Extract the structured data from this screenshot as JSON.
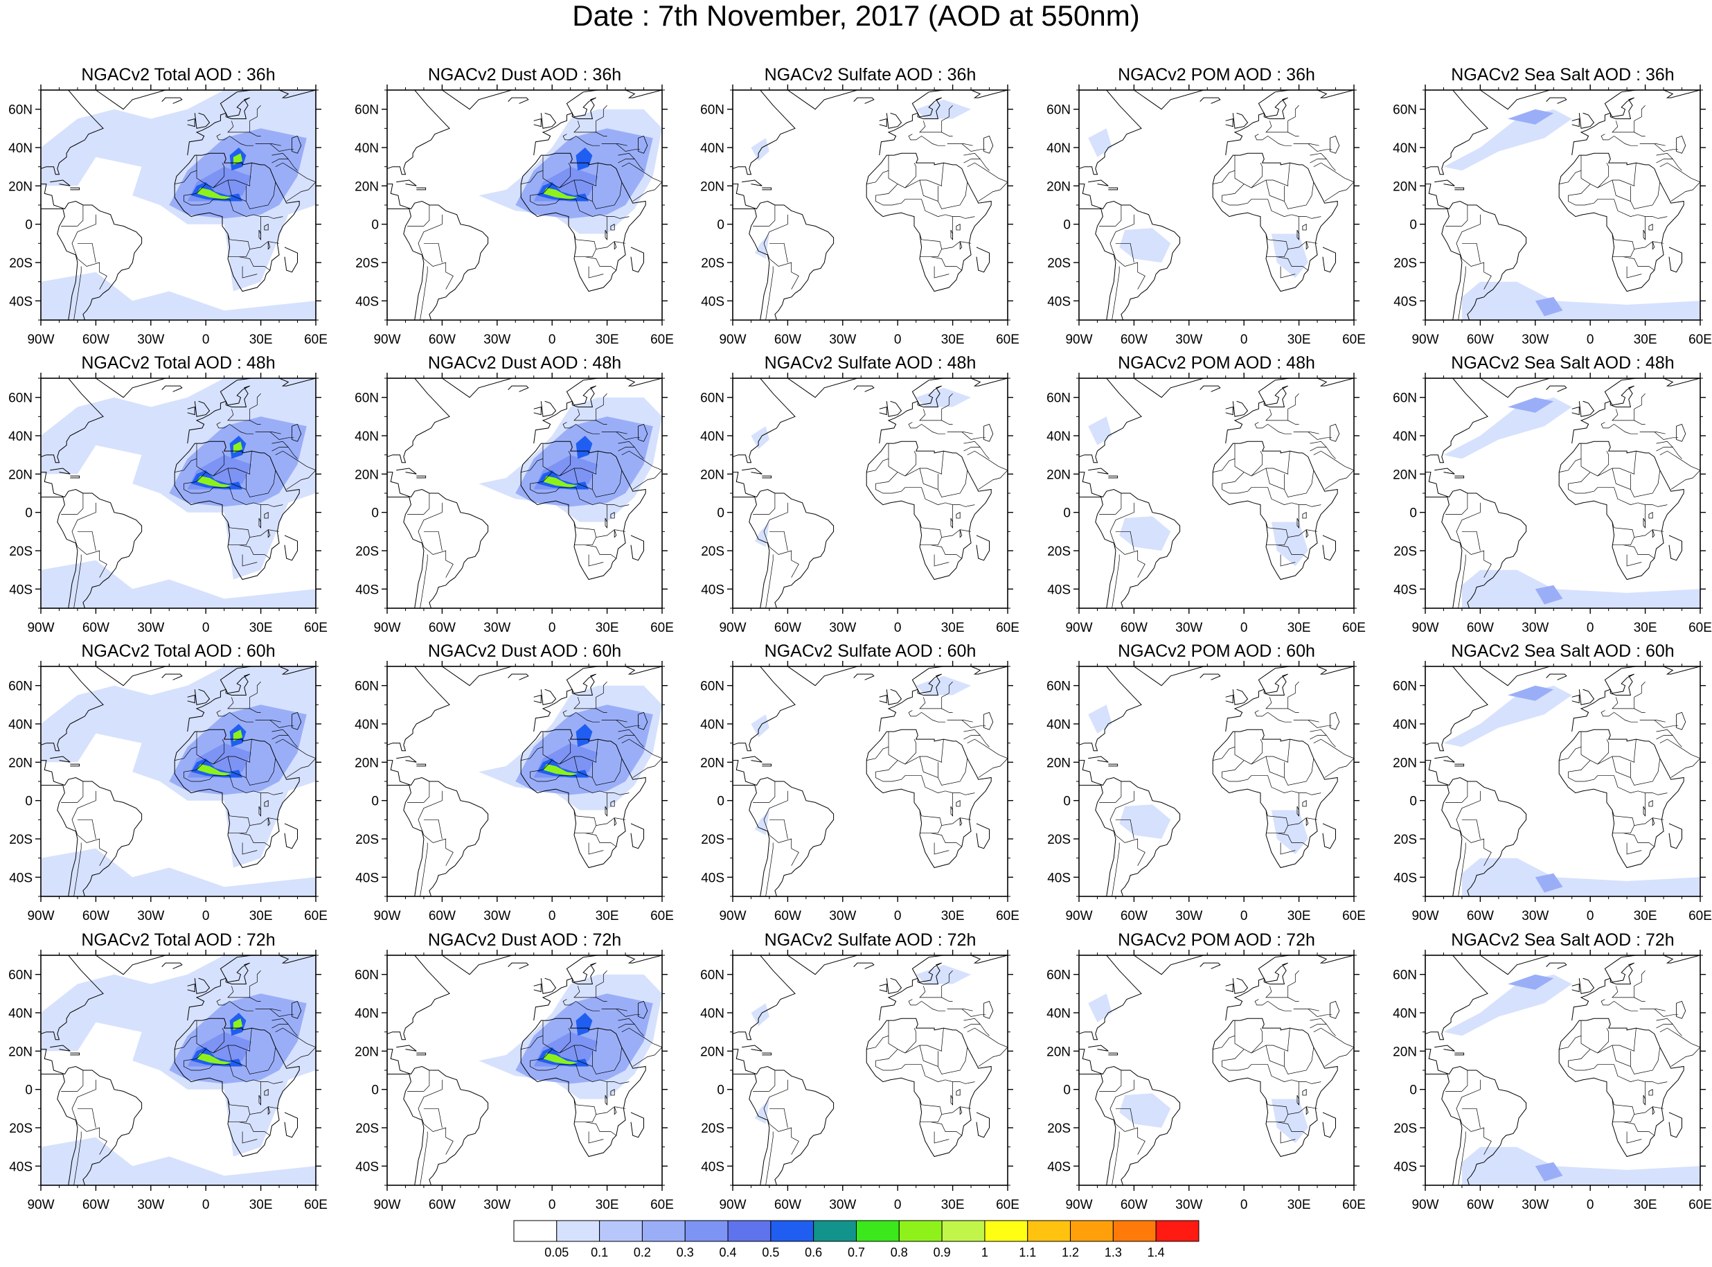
{
  "title": "Date : 7th November, 2017 (AOD at 550nm)",
  "lat_labels": [
    "60N",
    "40N",
    "20N",
    "0",
    "20S",
    "40S"
  ],
  "lon_labels": [
    "90W",
    "60W",
    "30W",
    "0",
    "30E",
    "60E"
  ],
  "map_extent": {
    "lon": [
      -90,
      60
    ],
    "lat": [
      -50,
      70
    ]
  },
  "columns": [
    {
      "species": "total",
      "color": "#6f86f0"
    },
    {
      "species": "dust",
      "color": "#6f86f0"
    },
    {
      "species": "sulfate",
      "color": "#b8c7fb"
    },
    {
      "species": "pom",
      "color": "#b8c7fb"
    },
    {
      "species": "seasalt",
      "color": "#a3b6fa"
    }
  ],
  "panels": [
    [
      "NGACv2 Total AOD : 36h",
      "NGACv2 Dust AOD : 36h",
      "NGACv2 Sulfate AOD : 36h",
      "NGACv2 POM AOD : 36h",
      "NGACv2 Sea Salt AOD : 36h"
    ],
    [
      "NGACv2 Total AOD : 48h",
      "NGACv2 Dust AOD : 48h",
      "NGACv2 Sulfate AOD : 48h",
      "NGACv2 POM AOD : 48h",
      "NGACv2 Sea Salt AOD : 48h"
    ],
    [
      "NGACv2 Total AOD : 60h",
      "NGACv2 Dust AOD : 60h",
      "NGACv2 Sulfate AOD : 60h",
      "NGACv2 POM AOD : 60h",
      "NGACv2 Sea Salt AOD : 60h"
    ],
    [
      "NGACv2 Total AOD : 72h",
      "NGACv2 Dust AOD : 72h",
      "NGACv2 Sulfate AOD : 72h",
      "NGACv2 POM AOD : 72h",
      "NGACv2 Sea Salt  AOD : 72h"
    ]
  ],
  "colorbar": {
    "labels": [
      "0.05",
      "0.1",
      "0.2",
      "0.3",
      "0.4",
      "0.5",
      "0.6",
      "0.7",
      "0.8",
      "0.9",
      "1",
      "1.1",
      "1.2",
      "1.3",
      "1.4"
    ],
    "colors": [
      "#ffffff",
      "#d6e1fd",
      "#b8c7fb",
      "#9aaef8",
      "#7d94f4",
      "#5f73ec",
      "#1f5ef0",
      "#12948c",
      "#3ae81c",
      "#8ef21a",
      "#c2f54a",
      "#ffff14",
      "#ffc20e",
      "#ffa00a",
      "#ff7a08",
      "#ff1a12"
    ]
  }
}
